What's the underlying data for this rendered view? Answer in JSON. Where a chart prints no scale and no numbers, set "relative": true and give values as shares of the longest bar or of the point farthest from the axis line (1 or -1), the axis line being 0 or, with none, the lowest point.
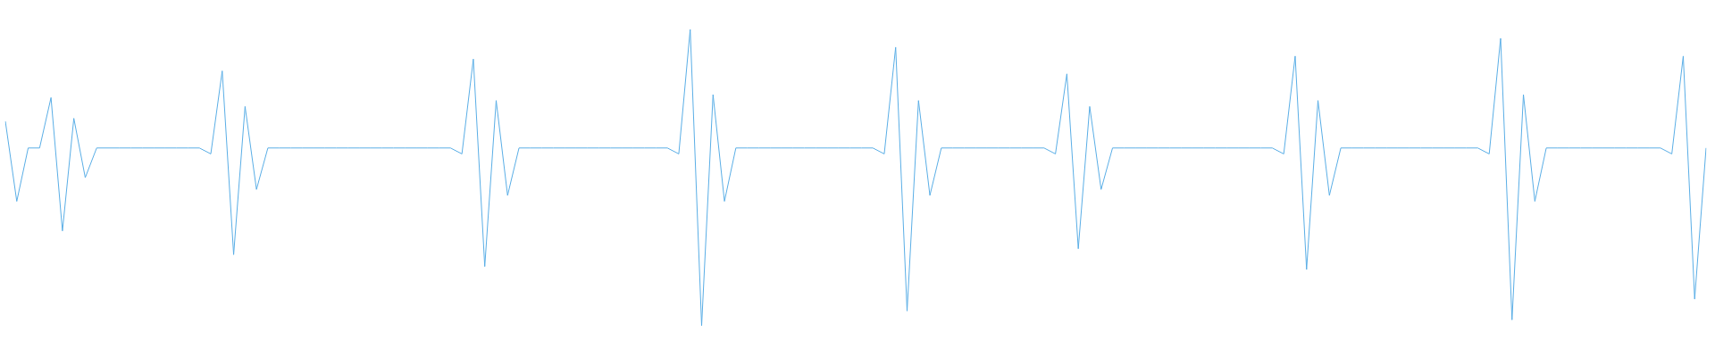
{
  "chart_data": {
    "type": "line",
    "relative": true,
    "categories": [
      null,
      null,
      null,
      null,
      null,
      null,
      null,
      null,
      null,
      null,
      null,
      null,
      null,
      null,
      null,
      null,
      null,
      null,
      null,
      null,
      null,
      null,
      null,
      null,
      null,
      null,
      null,
      null,
      null,
      null,
      null,
      null,
      null,
      null,
      null,
      null,
      null,
      null,
      null,
      null,
      null,
      null,
      null,
      null,
      null,
      null,
      null,
      null,
      null,
      null,
      null,
      null,
      null,
      null,
      null,
      null,
      null,
      null,
      null,
      null,
      null,
      null,
      null,
      null,
      null,
      null,
      null,
      null,
      null,
      null,
      null,
      null,
      null,
      null,
      null,
      null,
      null,
      null,
      null,
      null,
      null,
      null,
      null,
      null,
      null,
      null,
      null,
      null,
      null,
      null,
      null,
      null,
      null,
      null,
      null,
      null,
      null,
      null,
      null,
      null,
      null,
      null,
      null,
      null,
      null,
      null,
      null,
      null,
      null,
      null,
      null,
      null,
      null,
      null,
      null,
      null,
      null,
      null,
      null,
      null,
      null,
      null,
      null,
      null,
      null,
      null,
      null,
      null,
      null,
      null,
      null,
      null,
      null,
      null,
      null,
      null,
      null,
      null,
      null,
      null,
      null,
      null,
      null,
      null,
      null,
      null,
      null,
      null,
      null,
      null
    ],
    "series": [
      {
        "color": "#5aaee6",
        "values": [
          0.69,
          0.42,
          0.6,
          0.6,
          0.77,
          0.32,
          0.7,
          0.5,
          0.6,
          0.6,
          0.6,
          0.6,
          0.6,
          0.6,
          0.6,
          0.6,
          0.6,
          0.6,
          0.58,
          0.86,
          0.24,
          0.74,
          0.46,
          0.6,
          0.6,
          0.6,
          0.6,
          0.6,
          0.6,
          0.6,
          0.6,
          0.6,
          0.6,
          0.6,
          0.6,
          0.6,
          0.6,
          0.6,
          0.6,
          0.6,
          0.58,
          0.9,
          0.2,
          0.76,
          0.44,
          0.6,
          0.6,
          0.6,
          0.6,
          0.6,
          0.6,
          0.6,
          0.6,
          0.6,
          0.6,
          0.6,
          0.6,
          0.6,
          0.6,
          0.58,
          1,
          0,
          0.78,
          0.42,
          0.6,
          0.6,
          0.6,
          0.6,
          0.6,
          0.6,
          0.6,
          0.6,
          0.6,
          0.6,
          0.6,
          0.6,
          0.6,
          0.58,
          0.94,
          0.05,
          0.76,
          0.44,
          0.6,
          0.6,
          0.6,
          0.6,
          0.6,
          0.6,
          0.6,
          0.6,
          0.6,
          0.6,
          0.58,
          0.85,
          0.26,
          0.74,
          0.46,
          0.6,
          0.6,
          0.6,
          0.6,
          0.6,
          0.6,
          0.6,
          0.6,
          0.6,
          0.6,
          0.6,
          0.6,
          0.6,
          0.6,
          0.6,
          0.58,
          0.91,
          0.19,
          0.76,
          0.44,
          0.6,
          0.6,
          0.6,
          0.6,
          0.6,
          0.6,
          0.6,
          0.6,
          0.6,
          0.6,
          0.6,
          0.6,
          0.6,
          0.58,
          0.97,
          0.02,
          0.78,
          0.42,
          0.6,
          0.6,
          0.6,
          0.6,
          0.6,
          0.6,
          0.6,
          0.6,
          0.6,
          0.6,
          0.6,
          0.58,
          0.91,
          0.09,
          0.6
        ]
      }
    ]
  }
}
